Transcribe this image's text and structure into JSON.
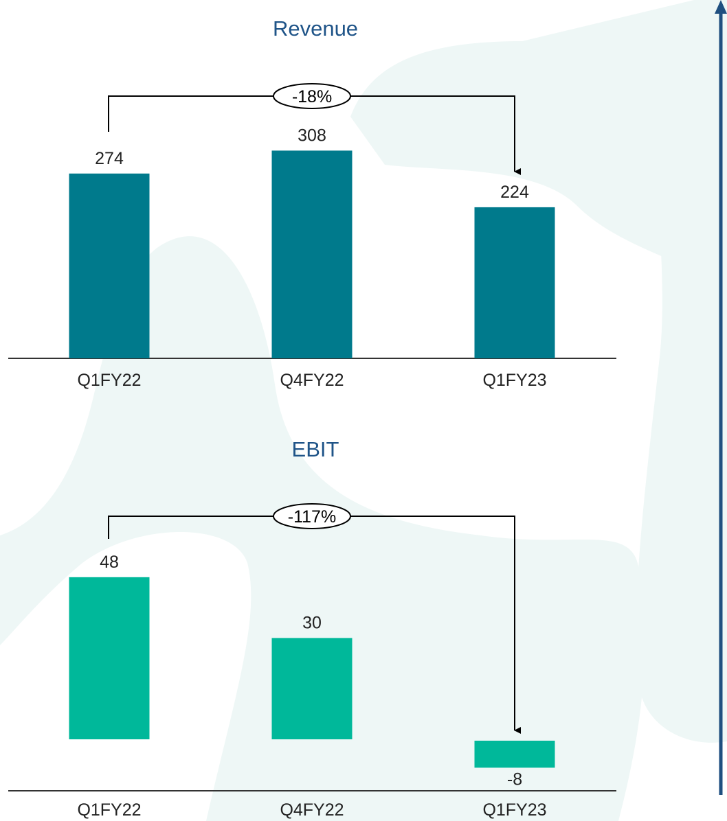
{
  "colors": {
    "title": "#1f5488",
    "revenue_bar": "#007a8c",
    "ebit_bar": "#00b89a",
    "background_shape": "#eef7f6",
    "side_arrow": "#1f4f80",
    "axis": "#333333"
  },
  "side_arrow_icon": "arrow-up-icon",
  "chart_data": [
    {
      "type": "bar",
      "title": "Revenue",
      "categories": [
        "Q1FY22",
        "Q4FY22",
        "Q1FY23"
      ],
      "values": [
        274,
        308,
        224
      ],
      "value_labels": [
        "274",
        "308",
        "224"
      ],
      "change_label": "-18%",
      "change_from": "Q1FY22",
      "change_to": "Q1FY23"
    },
    {
      "type": "bar",
      "title": "EBIT",
      "categories": [
        "Q1FY22",
        "Q4FY22",
        "Q1FY23"
      ],
      "values": [
        48,
        30,
        -8
      ],
      "value_labels": [
        "48",
        "30",
        "-8"
      ],
      "change_label": "-117%",
      "change_from": "Q1FY22",
      "change_to": "Q1FY23"
    }
  ]
}
